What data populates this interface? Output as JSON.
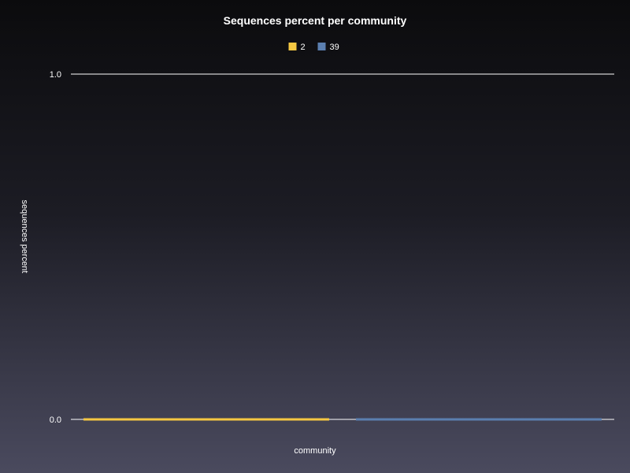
{
  "chart_data": {
    "type": "bar",
    "title": "Sequences percent per community",
    "xlabel": "community",
    "ylabel": "sequences percent",
    "ylim": [
      0.0,
      1.0
    ],
    "yticks": [
      "0.0",
      "1.0"
    ],
    "categories": [
      ""
    ],
    "series": [
      {
        "name": "2",
        "values": [
          0.0
        ],
        "color": "#f5c842"
      },
      {
        "name": "39",
        "values": [
          0.0
        ],
        "color": "#5b7fb0"
      }
    ],
    "legend_position": "top-center",
    "grid": true
  }
}
